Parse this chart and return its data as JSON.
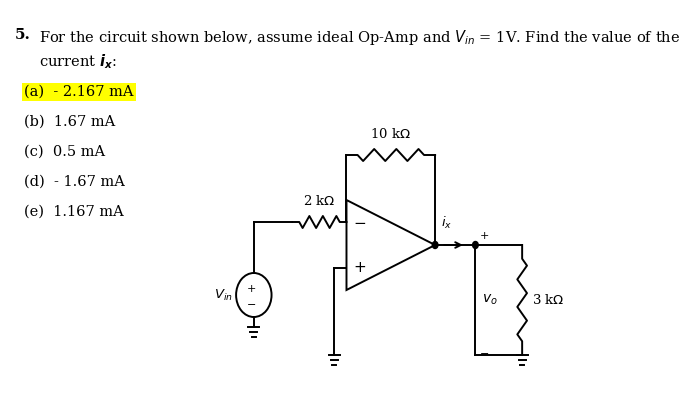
{
  "bg_color": "#FFFFFF",
  "text_color": "#000000",
  "highlight_color": "#FFFF00",
  "options": [
    {
      "label": "(a)  - 2.167 mA",
      "highlight": true
    },
    {
      "label": "(b)  1.67 mA",
      "highlight": false
    },
    {
      "label": "(c)  0.5 mA",
      "highlight": false
    },
    {
      "label": "(d)  - 1.67 mA",
      "highlight": false
    },
    {
      "label": "(e)  1.167 mA",
      "highlight": false
    }
  ]
}
